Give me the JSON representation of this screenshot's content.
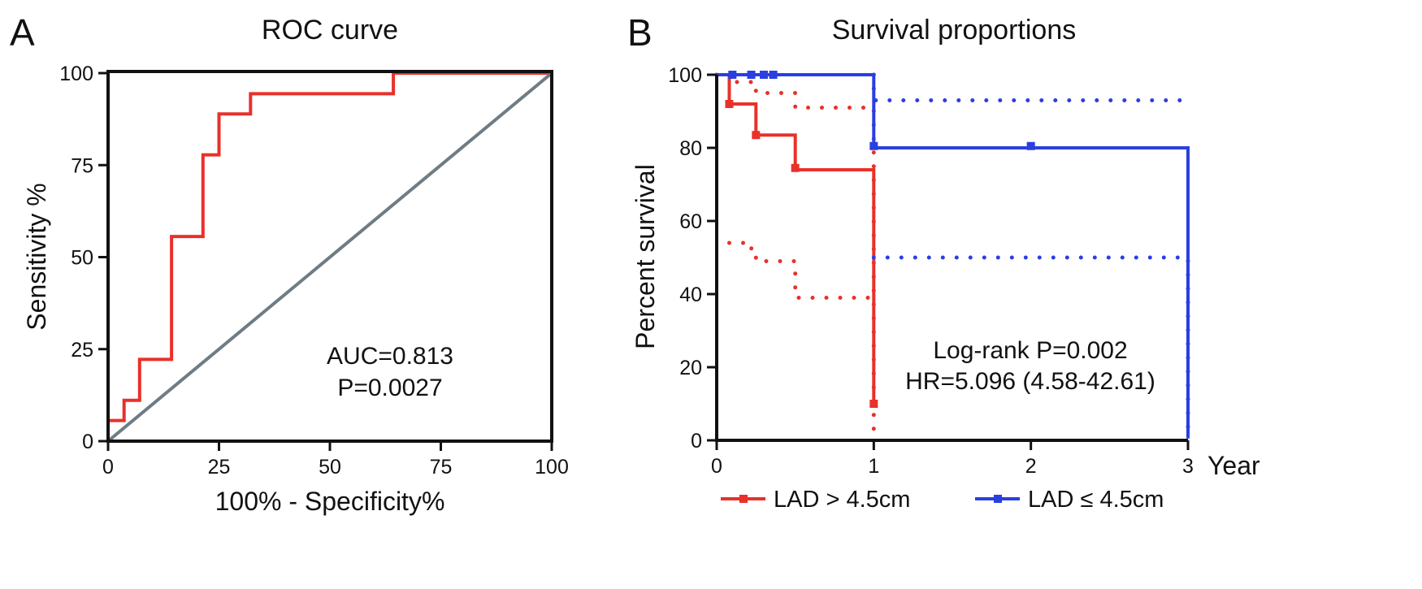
{
  "panels": [
    {
      "letter": "A",
      "chart": {
        "type": "line",
        "title": "ROC curve",
        "xlabel": "100% - Specificity%",
        "ylabel": "Sensitivity %",
        "xlim": [
          0,
          100
        ],
        "ylim": [
          0,
          100
        ],
        "x_ticks": [
          0,
          25,
          50,
          75,
          100
        ],
        "y_ticks": [
          0,
          25,
          50,
          75,
          100
        ],
        "grid": false,
        "annotations": [
          "AUC=0.813",
          "P=0.0027"
        ],
        "series": [
          {
            "name": "ROC",
            "color": "#e8312a",
            "style": "step",
            "points": [
              [
                0,
                0
              ],
              [
                0,
                5.6
              ],
              [
                3.6,
                5.6
              ],
              [
                3.6,
                11.1
              ],
              [
                7.1,
                11.1
              ],
              [
                7.1,
                22.2
              ],
              [
                14.3,
                22.2
              ],
              [
                14.3,
                55.6
              ],
              [
                21.4,
                55.6
              ],
              [
                21.4,
                77.8
              ],
              [
                25,
                77.8
              ],
              [
                25,
                88.9
              ],
              [
                32.1,
                88.9
              ],
              [
                32.1,
                94.4
              ],
              [
                64.3,
                94.4
              ],
              [
                64.3,
                100
              ],
              [
                100,
                100
              ]
            ]
          },
          {
            "name": "Reference line",
            "color": "#6f7c84",
            "style": "line",
            "points": [
              [
                0,
                0
              ],
              [
                100,
                100
              ]
            ]
          }
        ]
      }
    },
    {
      "letter": "B",
      "chart": {
        "type": "line",
        "title": "Survival proportions",
        "xlabel": "Year",
        "ylabel": "Percent survival",
        "xlim": [
          0,
          3
        ],
        "ylim": [
          0,
          100
        ],
        "x_ticks": [
          0,
          1,
          2,
          3
        ],
        "y_ticks": [
          0,
          20,
          40,
          60,
          80,
          100
        ],
        "grid": false,
        "annotations": [
          "Log-rank P=0.002",
          "HR=5.096 (4.58-42.61)"
        ],
        "legend": {
          "placement": "bottom",
          "entries": [
            {
              "label": "LAD > 4.5cm",
              "color": "#e8312a"
            },
            {
              "label": "LAD ≤ 4.5cm",
              "color": "#2a3fe0"
            }
          ]
        },
        "series": [
          {
            "name": "LAD > 4.5cm",
            "color": "#e8312a",
            "style": "step",
            "points": [
              [
                0,
                100
              ],
              [
                0.08,
                100
              ],
              [
                0.08,
                92
              ],
              [
                0.25,
                92
              ],
              [
                0.25,
                83.5
              ],
              [
                0.5,
                83.5
              ],
              [
                0.5,
                74
              ],
              [
                1,
                74
              ],
              [
                1,
                10
              ]
            ],
            "censor_marks": [
              [
                0.08,
                92
              ],
              [
                0.25,
                83.5
              ],
              [
                0.5,
                74.5
              ],
              [
                1,
                10
              ]
            ]
          },
          {
            "name": "LAD > 4.5cm upper 95% CI",
            "color": "#e8312a",
            "style": "dotted",
            "points": [
              [
                0,
                100
              ],
              [
                0.1,
                100
              ],
              [
                0.1,
                98
              ],
              [
                0.25,
                98
              ],
              [
                0.25,
                95
              ],
              [
                0.5,
                95
              ],
              [
                0.5,
                91
              ],
              [
                1,
                91
              ],
              [
                1,
                0
              ]
            ]
          },
          {
            "name": "LAD > 4.5cm lower 95% CI",
            "color": "#e8312a",
            "style": "dotted",
            "points": [
              [
                0.08,
                54
              ],
              [
                0.18,
                54
              ],
              [
                0.18,
                52.5
              ],
              [
                0.25,
                52.5
              ],
              [
                0.25,
                49
              ],
              [
                0.5,
                49
              ],
              [
                0.5,
                39
              ],
              [
                1,
                39
              ]
            ]
          },
          {
            "name": "LAD ≤ 4.5cm",
            "color": "#2a3fe0",
            "style": "step",
            "points": [
              [
                0,
                100
              ],
              [
                1,
                100
              ],
              [
                1,
                80
              ],
              [
                3,
                80
              ],
              [
                3,
                0.5
              ]
            ],
            "censor_marks": [
              [
                0.1,
                100
              ],
              [
                0.22,
                100
              ],
              [
                0.3,
                100
              ],
              [
                0.36,
                100
              ],
              [
                1,
                80.5
              ],
              [
                2,
                80.5
              ]
            ]
          },
          {
            "name": "LAD ≤ 4.5cm upper 95% CI",
            "color": "#2a3fe0",
            "style": "dotted",
            "points": [
              [
                1,
                100
              ],
              [
                1,
                93
              ],
              [
                3,
                93
              ]
            ]
          },
          {
            "name": "LAD ≤ 4.5cm lower 95% CI",
            "color": "#2a3fe0",
            "style": "dotted",
            "points": [
              [
                1,
                50
              ],
              [
                3,
                50
              ],
              [
                3,
                0
              ]
            ]
          }
        ]
      }
    }
  ]
}
